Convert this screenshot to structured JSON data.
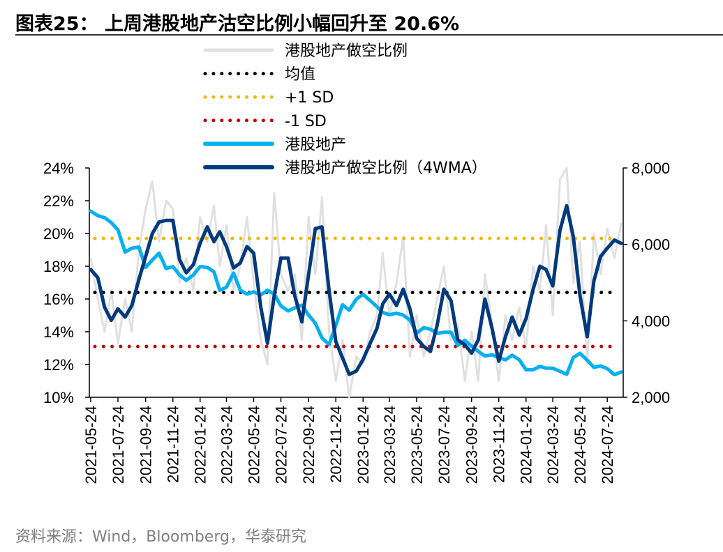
{
  "title": "图表25：  上周港股地产沽空比例小幅回升至 20.6%",
  "source": "资料来源：Wind，Bloomberg，华泰研究",
  "chart_data": {
    "type": "line",
    "title": "图表25：  上周港股地产沽空比例小幅回升至 20.6%",
    "legend_position": "top-center",
    "grid": false,
    "xlim": [
      "2021-05-24",
      "2024-08-24"
    ],
    "x_tick_labels": [
      "2021-05-24",
      "2021-07-24",
      "2021-09-24",
      "2021-11-24",
      "2022-01-24",
      "2022-03-24",
      "2022-05-24",
      "2022-07-24",
      "2022-09-24",
      "2022-11-24",
      "2023-01-24",
      "2023-03-24",
      "2023-05-24",
      "2023-07-24",
      "2023-09-24",
      "2023-11-24",
      "2024-01-24",
      "2024-03-24",
      "2024-05-24",
      "2024-07-24"
    ],
    "y_left": {
      "ylim": [
        10,
        24
      ],
      "ticks": [
        10,
        12,
        14,
        16,
        18,
        20,
        22,
        24
      ],
      "tick_labels": [
        "10%",
        "12%",
        "14%",
        "16%",
        "18%",
        "20%",
        "22%",
        "24%"
      ]
    },
    "y_right": {
      "ylim": [
        2000,
        8000
      ],
      "ticks": [
        2000,
        4000,
        6000,
        8000
      ],
      "tick_labels": [
        "2,000",
        "4,000",
        "6,000",
        "8,000"
      ]
    },
    "x": [
      "2021-05-24",
      "2021-06-09",
      "2021-06-24",
      "2021-07-09",
      "2021-07-24",
      "2021-08-09",
      "2021-08-24",
      "2021-09-09",
      "2021-09-24",
      "2021-10-09",
      "2021-10-24",
      "2021-11-09",
      "2021-11-24",
      "2021-12-09",
      "2021-12-24",
      "2022-01-09",
      "2022-01-24",
      "2022-02-09",
      "2022-02-24",
      "2022-03-09",
      "2022-03-24",
      "2022-04-09",
      "2022-04-24",
      "2022-05-09",
      "2022-05-24",
      "2022-06-09",
      "2022-06-24",
      "2022-07-09",
      "2022-07-24",
      "2022-08-09",
      "2022-08-24",
      "2022-09-09",
      "2022-09-24",
      "2022-10-09",
      "2022-10-24",
      "2022-11-09",
      "2022-11-24",
      "2022-12-09",
      "2022-12-24",
      "2023-01-09",
      "2023-01-24",
      "2023-02-09",
      "2023-02-24",
      "2023-03-09",
      "2023-03-24",
      "2023-04-09",
      "2023-04-24",
      "2023-05-09",
      "2023-05-24",
      "2023-06-09",
      "2023-06-24",
      "2023-07-09",
      "2023-07-24",
      "2023-08-09",
      "2023-08-24",
      "2023-09-09",
      "2023-09-24",
      "2023-10-09",
      "2023-10-24",
      "2023-11-09",
      "2023-11-24",
      "2023-12-09",
      "2023-12-24",
      "2024-01-09",
      "2024-01-24",
      "2024-02-09",
      "2024-02-24",
      "2024-03-09",
      "2024-03-24",
      "2024-04-09",
      "2024-04-24",
      "2024-05-09",
      "2024-05-24",
      "2024-06-09",
      "2024-06-24",
      "2024-07-09",
      "2024-07-24",
      "2024-08-09",
      "2024-08-24"
    ],
    "series": [
      {
        "name": "港股地产做空比例",
        "axis": "left",
        "color": "#e0e0e0",
        "style": "solid",
        "values": [
          18.5,
          16.0,
          14.0,
          16.5,
          13.3,
          16.0,
          14.0,
          19.0,
          21.5,
          23.2,
          19.5,
          22.0,
          21.5,
          17.0,
          18.5,
          16.5,
          21.0,
          19.5,
          21.7,
          18.0,
          20.5,
          16.5,
          18.0,
          21.0,
          17.0,
          13.5,
          12.0,
          22.5,
          17.5,
          16.5,
          17.5,
          13.5,
          21.0,
          17.5,
          22.2,
          14.0,
          11.0,
          13.5,
          10.0,
          12.5,
          12.0,
          14.0,
          15.0,
          18.8,
          15.0,
          17.0,
          19.8,
          12.5,
          15.0,
          12.5,
          14.0,
          16.0,
          18.0,
          13.5,
          14.5,
          11.0,
          14.0,
          11.0,
          17.5,
          14.5,
          11.0,
          15.0,
          13.5,
          15.5,
          13.0,
          18.0,
          16.5,
          20.5,
          15.0,
          23.3,
          24.0,
          17.0,
          19.5,
          12.0,
          20.0,
          17.5,
          20.3,
          18.5,
          20.6
        ]
      },
      {
        "name": "均值",
        "axis": "left",
        "color": "#000000",
        "style": "dotted",
        "constant": 16.4
      },
      {
        "name": "+1 SD",
        "axis": "left",
        "color": "#f2b800",
        "style": "dotted",
        "constant": 19.7
      },
      {
        "name": "-1 SD",
        "axis": "left",
        "color": "#c00000",
        "style": "dotted",
        "constant": 13.1
      },
      {
        "name": "港股地产",
        "axis": "right",
        "color": "#00b0f0",
        "style": "solid",
        "values": [
          6870,
          6750,
          6700,
          6570,
          6380,
          5800,
          5900,
          5930,
          5400,
          5590,
          5770,
          5370,
          5420,
          5200,
          5060,
          5200,
          5420,
          5400,
          5280,
          4800,
          4880,
          5250,
          4800,
          4700,
          4760,
          4680,
          4800,
          4700,
          4390,
          4260,
          4340,
          4410,
          4150,
          3940,
          3550,
          3380,
          3880,
          4420,
          4280,
          4570,
          4690,
          4530,
          4370,
          4220,
          4160,
          4200,
          4150,
          4020,
          3680,
          3820,
          3780,
          3670,
          3700,
          3700,
          3360,
          3490,
          3340,
          3200,
          3080,
          3110,
          3040,
          2980,
          3100,
          2980,
          2720,
          2720,
          2810,
          2760,
          2760,
          2680,
          2600,
          3040,
          3150,
          2970,
          2780,
          2820,
          2750,
          2590,
          2660
        ]
      },
      {
        "name": "港股地产做空比例（4WMA）",
        "axis": "left",
        "color": "#003a7d",
        "style": "solid",
        "values": [
          17.8,
          17.3,
          15.5,
          14.7,
          15.4,
          14.9,
          15.6,
          17.2,
          18.6,
          20.0,
          20.7,
          20.8,
          20.8,
          18.4,
          17.6,
          18.1,
          19.4,
          20.4,
          19.5,
          20.1,
          19.2,
          17.9,
          18.2,
          19.2,
          18.8,
          15.5,
          13.3,
          16.2,
          18.5,
          18.5,
          16.2,
          14.6,
          17.5,
          20.3,
          20.4,
          16.5,
          13.4,
          12.4,
          11.4,
          11.6,
          12.3,
          13.3,
          14.2,
          15.7,
          16.3,
          15.6,
          16.6,
          15.4,
          13.6,
          13.1,
          12.8,
          14.4,
          16.6,
          15.9,
          13.5,
          13.2,
          12.7,
          13.5,
          16.0,
          14.2,
          12.2,
          13.7,
          14.9,
          13.8,
          14.8,
          16.6,
          18.0,
          17.8,
          16.8,
          20.2,
          21.7,
          19.8,
          16.2,
          13.7,
          17.1,
          18.6,
          19.1,
          19.6,
          19.4
        ]
      }
    ]
  }
}
